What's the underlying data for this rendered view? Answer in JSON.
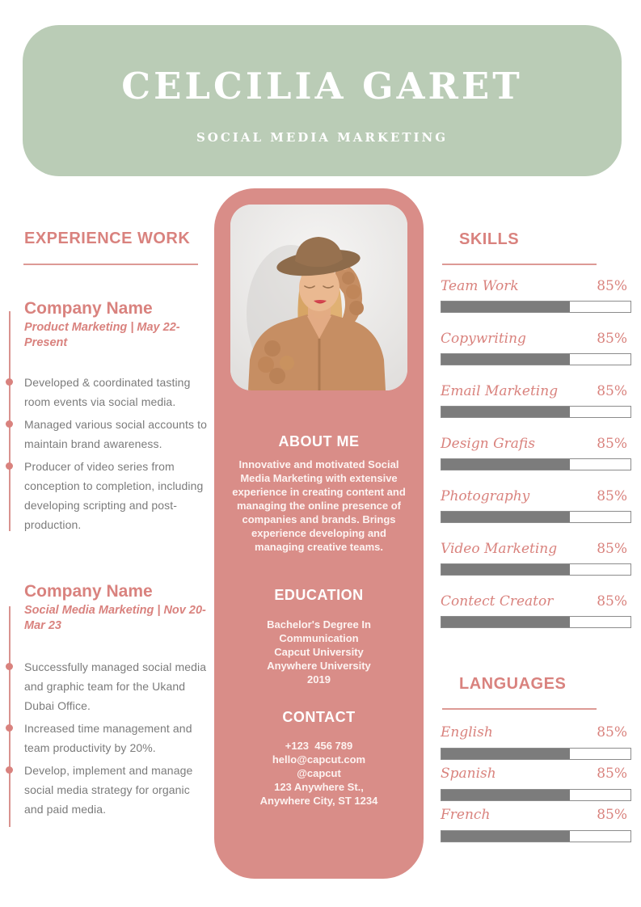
{
  "header": {
    "name": "CELCILIA GARET",
    "subtitle": "SOCIAL MEDIA MARKETING"
  },
  "experience": {
    "heading": "EXPERIENCE WORK",
    "jobs": [
      {
        "company": "Company Name",
        "meta": "Product Marketing | May 22-Present",
        "bullets": [
          "Developed & coordinated tasting room events via social media.",
          "Managed various social accounts to maintain brand awareness.",
          "Producer of video series from conception to completion, including developing scripting and post-production."
        ]
      },
      {
        "company": "Company Name",
        "meta": "Social Media Marketing | Nov 20-Mar 23",
        "bullets": [
          "Successfully managed social media and graphic team for the Ukand Dubai Office.",
          "Increased time management and team productivity by 20%.",
          "Develop, implement and manage social media strategy for organic and paid media."
        ]
      }
    ]
  },
  "profile": {
    "photo_alt": "Portrait photo of a smiling woman wearing a brown hat and chunky knit cardigan",
    "about": {
      "heading": "ABOUT ME",
      "text": "Innovative and motivated Social Media Marketing with extensive experience in creating content and managing the online presence of companies and brands. Brings experience developing and managing creative teams."
    },
    "education": {
      "heading": "EDUCATION",
      "lines": [
        "Bachelor's Degree In Communication",
        "Capcut University",
        "Anywhere University",
        "2019"
      ]
    },
    "contact": {
      "heading": "CONTACT",
      "lines": [
        "+123  456 789",
        "hello@capcut.com",
        "@capcut",
        "123 Anywhere St.,",
        "Anywhere City, ST 1234"
      ]
    }
  },
  "skills": {
    "heading": "SKILLS",
    "items": [
      {
        "label": "Team Work",
        "pct": "85%",
        "fill": 68
      },
      {
        "label": "Copywriting",
        "pct": "85%",
        "fill": 68
      },
      {
        "label": "Email Marketing",
        "pct": "85%",
        "fill": 68
      },
      {
        "label": "Design Grafis",
        "pct": "85%",
        "fill": 68
      },
      {
        "label": "Photography",
        "pct": "85%",
        "fill": 68
      },
      {
        "label": "Video Marketing",
        "pct": "85%",
        "fill": 68
      },
      {
        "label": "Contect Creator",
        "pct": "85%",
        "fill": 68
      }
    ]
  },
  "languages": {
    "heading": "LANGUAGES",
    "items": [
      {
        "label": "English",
        "pct": "85%",
        "fill": 68
      },
      {
        "label": "Spanish",
        "pct": "85%",
        "fill": 68
      },
      {
        "label": "French",
        "pct": "85%",
        "fill": 68
      }
    ]
  },
  "colors": {
    "header_green": "#baccb6",
    "panel_pink": "#d98d88",
    "accent_pink": "#d9827e",
    "bar_fill_gray": "#7c7c7c",
    "body_text_gray": "#7b7b7b",
    "text_white": "#ffffff"
  }
}
